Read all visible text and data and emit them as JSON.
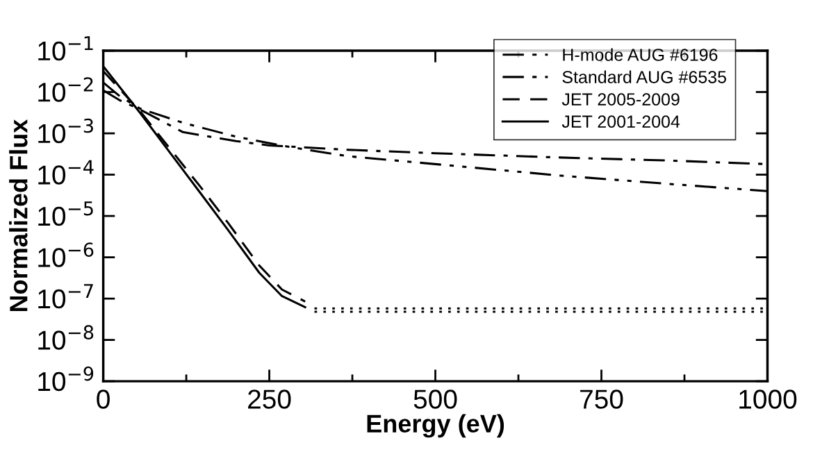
{
  "chart_data": {
    "type": "line",
    "xlabel": "Energy (eV)",
    "ylabel": "Normalized Flux",
    "log": "y",
    "xlim": [
      0,
      1000
    ],
    "ylim": [
      1e-09,
      0.1
    ],
    "xticks": [
      0,
      {
        "value": 125,
        "label": null
      },
      250,
      {
        "value": 375,
        "label": null
      },
      500,
      {
        "value": 625,
        "label": null
      },
      750,
      {
        "value": 875,
        "label": null
      },
      1000
    ],
    "yticks": [
      {
        "value": 1e-09,
        "label": "10$^{−9}$"
      },
      {
        "value": 1e-08,
        "label": "10$^{−8}$"
      },
      {
        "value": 1e-07,
        "label": "10$^{−7}$"
      },
      {
        "value": 1e-06,
        "label": "10$^{−6}$"
      },
      {
        "value": 1e-05,
        "label": "10$^{−5}$"
      },
      {
        "value": 0.0001,
        "label": "10$^{−4}$"
      },
      {
        "value": 0.001,
        "label": "10$^{−3}$"
      },
      {
        "value": 0.01,
        "label": "10$^{−2}$"
      },
      {
        "value": 0.1,
        "label": "10$^{−1}$"
      }
    ],
    "grid": false,
    "legend": "top right",
    "marker": "none",
    "series": [
      {
        "name": "H-mode AUG #6196",
        "color": "#000000",
        "line_style": "dashdot",
        "x": [
          0,
          25,
          55,
          120,
          200,
          250,
          300,
          368,
          500,
          688,
          850,
          1000
        ],
        "values": [
          0.011,
          0.0063,
          0.0038,
          0.00107,
          0.00065,
          0.00051,
          0.00046,
          0.0004,
          0.00033,
          0.00026,
          0.00022,
          0.00018
        ]
      },
      {
        "name": "Standard AUG #6535",
        "color": "#000000",
        "line_style": "dashdotdot",
        "x": [
          0,
          25,
          55,
          120,
          200,
          280,
          368,
          500,
          688,
          850,
          1000
        ],
        "values": [
          0.017,
          0.0079,
          0.004,
          0.0018,
          0.00083,
          0.00047,
          0.00028,
          0.00018,
          9.5e-05,
          6e-05,
          4e-05
        ]
      },
      {
        "name": "JET 2005-2009",
        "color": "#000000",
        "line_style": "dashed",
        "x": [
          0,
          55,
          148,
          187,
          235,
          269,
          304
        ],
        "values": [
          0.032,
          0.0035,
          4.7e-05,
          7.1e-06,
          6.3e-07,
          1.66e-07,
          8.5e-08
        ]
      },
      {
        "name": "JET 2001-2004",
        "color": "#000000",
        "line_style": "solid",
        "x": [
          0,
          55,
          148,
          187,
          235,
          269,
          304
        ],
        "values": [
          0.042,
          0.0032,
          3.3e-05,
          4.8e-06,
          4.2e-07,
          1.15e-07,
          6.2e-08
        ]
      },
      {
        "color": "#000000",
        "line_style": "dotted",
        "x": [
          318,
          1000
        ],
        "values": [
          5.8e-08,
          5.8e-08
        ]
      },
      {
        "color": "#000000",
        "line_style": "dotted",
        "x": [
          318,
          1000
        ],
        "values": [
          4.8e-08,
          4.8e-08
        ]
      }
    ]
  }
}
